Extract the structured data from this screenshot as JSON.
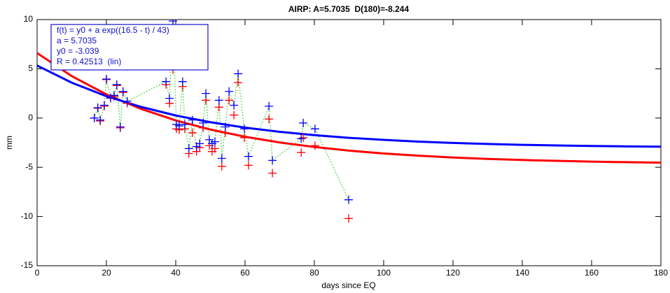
{
  "chart_data": {
    "type": "scatter",
    "title": "AIRP: A=5.7035  D(180)=-8.244",
    "xlabel": "days since EQ",
    "ylabel": "mm",
    "annotation": [
      "f(t) = y0 + a exp((16.5 - t) / 43)",
      "a = 5.7035",
      "y0 = -3.039",
      "R = 0.42513  (lin)"
    ],
    "annotation_color": "#1010d0",
    "xlim": [
      0,
      180
    ],
    "xticks": [
      0,
      20,
      40,
      60,
      80,
      100,
      120,
      140,
      160,
      180
    ],
    "ylim": [
      -15,
      10
    ],
    "yticks": [
      -15,
      -10,
      -5,
      0,
      5,
      10
    ],
    "x": [
      16.5,
      17.5,
      18.2,
      19.4,
      20,
      21.2,
      22.2,
      23,
      24,
      24.8,
      26,
      37.2,
      38.2,
      39.2,
      40.2,
      41,
      42,
      42.6,
      43.8,
      44.8,
      46,
      46.9,
      47.9,
      48.7,
      49.7,
      50.5,
      51.3,
      52.5,
      53.3,
      54.3,
      55.4,
      56.8,
      58,
      59.8,
      61,
      66.9,
      67.9,
      76.2,
      76.8,
      80.2,
      89.9
    ],
    "series": [
      {
        "color": "#0000ff",
        "connector_color": "#33cc33",
        "values": [
          0,
          1.05,
          -0.2,
          1.3,
          3.96,
          2.05,
          2.3,
          3.4,
          -0.9,
          2.7,
          1.7,
          3.7,
          2.0,
          9.85,
          -0.65,
          -0.8,
          3.7,
          -0.65,
          -3.1,
          -0.2,
          -2.9,
          -2.6,
          -0.5,
          2.5,
          -2.2,
          -2.6,
          -2.4,
          1.8,
          -4.1,
          -0.9,
          2.7,
          1.3,
          4.5,
          -1.1,
          -3.9,
          1.2,
          -4.3,
          -2.1,
          -0.5,
          -1.1,
          -8.3
        ]
      },
      {
        "color": "#ff0000",
        "values": [
          0,
          1.0,
          -0.3,
          1.2,
          3.9,
          2.0,
          2.2,
          3.3,
          -1.0,
          2.6,
          1.5,
          3.4,
          1.5,
          4.9,
          -1.1,
          -1.2,
          3.2,
          -1.1,
          -3.6,
          -1.5,
          -3.4,
          -3.0,
          -1.0,
          1.8,
          -2.8,
          -3.4,
          -3.1,
          1.1,
          -4.9,
          -1.5,
          1.8,
          0.3,
          3.6,
          -2.0,
          -4.8,
          -0.1,
          -5.6,
          -3.5,
          -2.0,
          -2.8,
          -10.2
        ]
      }
    ],
    "fits": {
      "x": [
        0,
        10,
        20,
        30,
        40,
        50,
        60,
        70,
        80,
        90,
        100,
        110,
        120,
        130,
        140,
        150,
        160,
        170,
        180
      ],
      "series": [
        {
          "color": "#ff0000",
          "values": [
            6.6,
            4.26,
            2.4,
            0.93,
            -0.24,
            -1.17,
            -1.9,
            -2.48,
            -2.94,
            -3.31,
            -3.6,
            -3.82,
            -4.01,
            -4.15,
            -4.26,
            -4.35,
            -4.43,
            -4.48,
            -4.53
          ]
        },
        {
          "color": "#0000ff",
          "values": [
            5.33,
            3.59,
            2.22,
            1.13,
            0.26,
            -0.42,
            -0.97,
            -1.4,
            -1.74,
            -2.01,
            -2.22,
            -2.39,
            -2.53,
            -2.63,
            -2.72,
            -2.78,
            -2.84,
            -2.88,
            -2.91
          ]
        }
      ]
    }
  }
}
